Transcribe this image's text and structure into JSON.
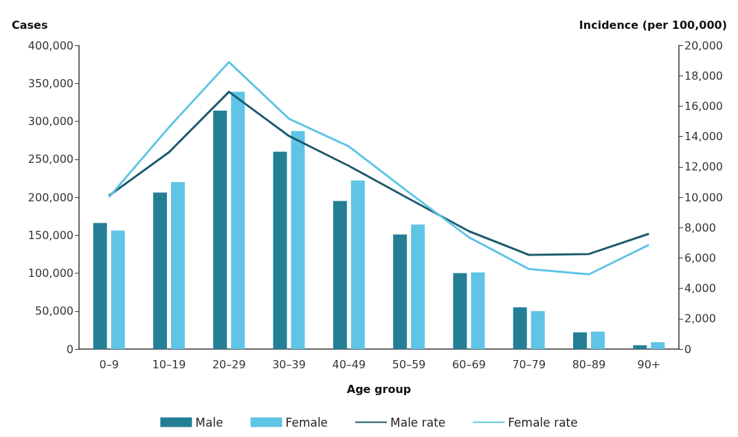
{
  "chart_data": {
    "type": "bar",
    "xlabel": "Age group",
    "ylabel": "Cases",
    "y2label": "Incidence (per 100,000)",
    "categories": [
      "0–9",
      "10–19",
      "20–29",
      "30–39",
      "40–49",
      "50–59",
      "60–69",
      "70–79",
      "80–89",
      "90+"
    ],
    "series": [
      {
        "name": "Male",
        "color": "#237f96",
        "values": [
          166000,
          206000,
          314000,
          260000,
          195000,
          151000,
          100000,
          55000,
          22000,
          5000
        ]
      },
      {
        "name": "Female",
        "color": "#5fc4e5",
        "values": [
          156000,
          220000,
          339000,
          287000,
          222000,
          164000,
          101000,
          50000,
          23000,
          9000
        ]
      },
      {
        "name": "Male rate",
        "type": "line",
        "axis": "y2",
        "color": "#1b5a6e",
        "values": [
          10100,
          12960,
          16940,
          14030,
          12060,
          9900,
          7760,
          6200,
          6260,
          7590
        ]
      },
      {
        "name": "Female rate",
        "type": "line",
        "axis": "y2",
        "color": "#5fc4e5",
        "values": [
          10000,
          14610,
          18900,
          15160,
          13340,
          10310,
          7360,
          5270,
          4920,
          6860
        ]
      }
    ],
    "ylim": [
      0,
      400000
    ],
    "yticks": [
      {
        "value": 0,
        "label": "0"
      },
      {
        "value": 50000,
        "label": "50,000"
      },
      {
        "value": 100000,
        "label": "100,000"
      },
      {
        "value": 150000,
        "label": "150,000"
      },
      {
        "value": 200000,
        "label": "200,000"
      },
      {
        "value": 250000,
        "label": "250,000"
      },
      {
        "value": 300000,
        "label": "300,000"
      },
      {
        "value": 350000,
        "label": "350,000"
      },
      {
        "value": 400000,
        "label": "400,000"
      }
    ],
    "y2lim": [
      0,
      20000
    ],
    "y2ticks": [
      {
        "value": 0,
        "label": "0"
      },
      {
        "value": 2000,
        "label": "2,000"
      },
      {
        "value": 4000,
        "label": "4,000"
      },
      {
        "value": 6000,
        "label": "6,000"
      },
      {
        "value": 8000,
        "label": "8,000"
      },
      {
        "value": 10000,
        "label": "10,000"
      },
      {
        "value": 12000,
        "label": "12,000"
      },
      {
        "value": 14000,
        "label": "14,000"
      },
      {
        "value": 16000,
        "label": "16,000"
      },
      {
        "value": 18000,
        "label": "18,000"
      },
      {
        "value": 20000,
        "label": "20,000"
      }
    ],
    "grid": false,
    "legend": "bottom",
    "marker": "none",
    "line_style": "solid"
  }
}
